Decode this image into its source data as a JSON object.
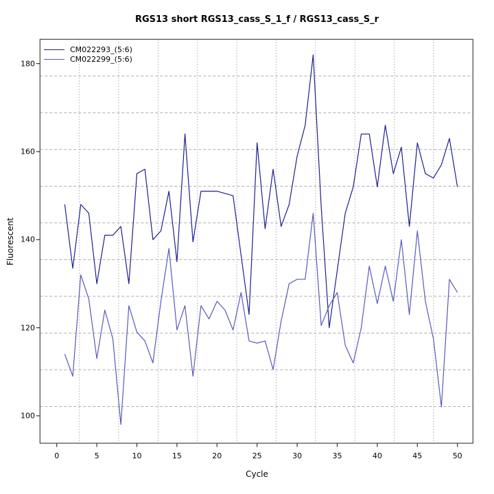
{
  "chart_data": {
    "type": "line",
    "title": "RGS13 short RGS13_cass_S_1_f / RGS13_cass_S_r",
    "xlabel": "Cycle",
    "ylabel": "Fluorescent",
    "x_ticks": [
      0,
      5,
      10,
      15,
      20,
      25,
      30,
      35,
      40,
      45,
      50
    ],
    "y_ticks": [
      100,
      120,
      140,
      160,
      180
    ],
    "xlim": [
      -2.1,
      51.9
    ],
    "ylim": [
      93.8,
      185.5
    ],
    "grid": {
      "nx": 11,
      "ny": 11,
      "vertical_style": "dotted",
      "horizontal_style": "dashed",
      "color": "#ababab"
    },
    "legend_position": "top-left",
    "x": [
      1,
      2,
      3,
      4,
      5,
      6,
      7,
      8,
      9,
      10,
      11,
      12,
      13,
      14,
      15,
      16,
      17,
      18,
      19,
      20,
      21,
      22,
      23,
      24,
      25,
      26,
      27,
      28,
      29,
      30,
      31,
      32,
      33,
      34,
      35,
      36,
      37,
      38,
      39,
      40,
      41,
      42,
      43,
      44,
      45,
      46,
      47,
      48,
      49,
      50
    ],
    "series": [
      {
        "name": "CM022293_(5:6)",
        "color": "#1d1d92",
        "values": [
          148,
          133.5,
          148,
          146,
          130,
          141,
          141,
          143,
          130,
          155,
          156,
          140,
          142,
          151,
          135,
          164,
          139.5,
          151,
          151,
          151,
          150.5,
          150,
          136.5,
          123,
          162,
          142.5,
          156,
          143,
          148,
          159,
          166,
          182,
          147.5,
          120,
          133,
          146,
          152,
          164,
          164,
          152,
          166,
          155,
          161,
          143,
          162,
          155,
          154,
          157,
          163,
          152
        ]
      },
      {
        "name": "CM022299_(5:6)",
        "color": "#5757bf",
        "values": [
          114,
          109,
          132,
          126.5,
          113,
          124,
          117.5,
          98,
          125,
          119,
          117,
          112,
          126,
          138,
          119.5,
          125,
          109,
          125,
          122,
          126,
          124,
          119.5,
          128,
          117,
          116.5,
          117,
          110.5,
          121.5,
          130,
          131,
          131,
          146,
          120.5,
          125,
          128,
          116,
          112,
          120,
          134,
          125.5,
          134,
          126,
          140,
          123,
          142,
          126,
          117.5,
          102,
          131,
          128
        ]
      }
    ]
  },
  "colors": {
    "box": "#444444",
    "tick": "#333333",
    "text": "#000000",
    "background": "#ffffff"
  }
}
